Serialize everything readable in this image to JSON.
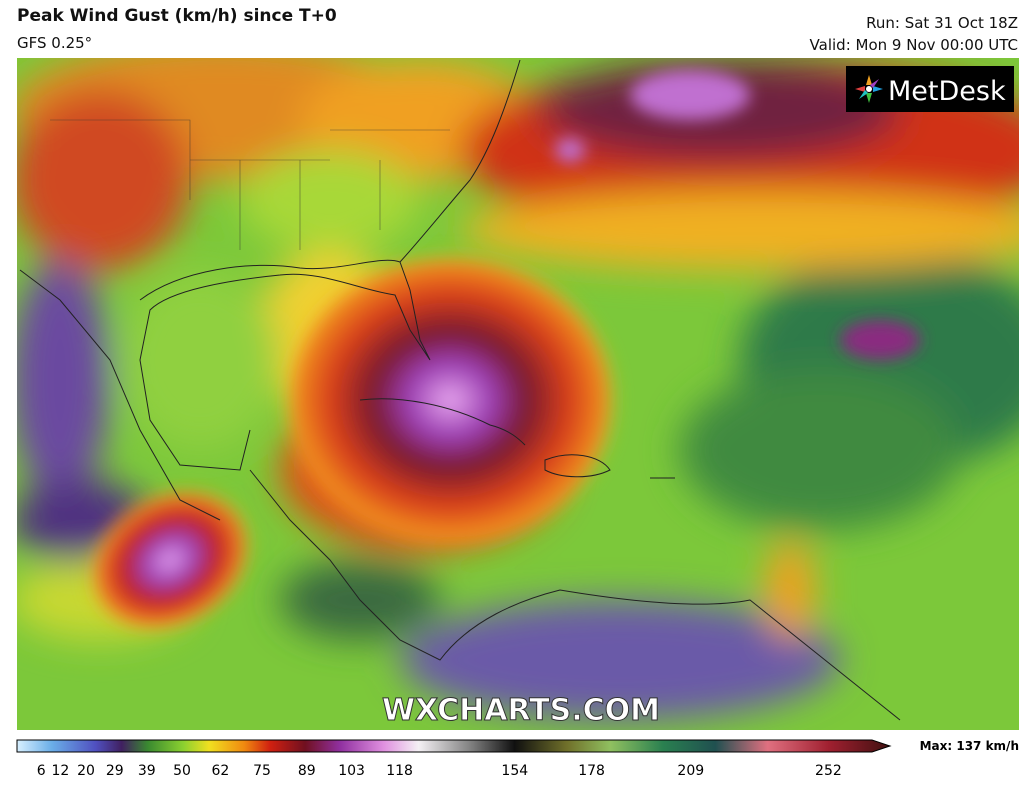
{
  "header": {
    "title": "Peak Wind Gust (km/h) since T+0",
    "model": "GFS 0.25°",
    "run": "Run: Sat 31 Oct 18Z",
    "valid": "Valid: Mon 9 Nov 00:00 UTC"
  },
  "logo": "MetDesk",
  "watermark": "WXCHARTS.COM",
  "legend": {
    "ticks": [
      6,
      12,
      20,
      29,
      39,
      50,
      62,
      75,
      89,
      103,
      118,
      154,
      178,
      209,
      252
    ],
    "max": "Max: 137 km/h"
  }
}
